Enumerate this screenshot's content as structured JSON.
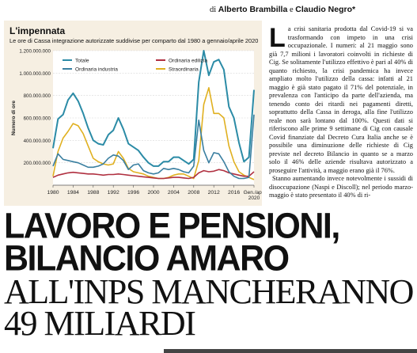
{
  "byline": {
    "prefix": "di ",
    "author1": "Alberto Brambilla",
    "and": " e ",
    "author2": "Claudio Negro*"
  },
  "chart_data": {
    "type": "line",
    "title": "L'impennata",
    "subtitle": "Le ore di Cassa integrazione autorizzate suddivise per comparto dal 1980 a gennaio/aprile 2020",
    "ylabel": "Numero di ore",
    "ylim": [
      0,
      1200000000
    ],
    "yticks": [
      "200.000.000",
      "400.000.000",
      "600.000.000",
      "800.000.000",
      "1.000.000.000",
      "1.200.000.000"
    ],
    "xticks": [
      "1980",
      "1984",
      "1988",
      "1992",
      "1996",
      "2000",
      "2004",
      "2008",
      "2012",
      "2016",
      "Gen./apr. 2020"
    ],
    "x": [
      1980,
      1981,
      1982,
      1983,
      1984,
      1985,
      1986,
      1987,
      1988,
      1989,
      1990,
      1991,
      1992,
      1993,
      1994,
      1995,
      1996,
      1997,
      1998,
      1999,
      2000,
      2001,
      2002,
      2003,
      2004,
      2005,
      2006,
      2007,
      2008,
      2009,
      2010,
      2011,
      2012,
      2013,
      2014,
      2015,
      2016,
      2017,
      2018,
      2019,
      2020
    ],
    "series": [
      {
        "name": "Totale",
        "color": "#2b8ba6",
        "values": [
          330,
          590,
          630,
          760,
          820,
          750,
          640,
          510,
          400,
          370,
          360,
          450,
          490,
          600,
          500,
          370,
          340,
          310,
          250,
          200,
          170,
          170,
          210,
          210,
          250,
          250,
          220,
          190,
          230,
          920,
          1200,
          980,
          1100,
          1120,
          1030,
          700,
          600,
          380,
          210,
          250,
          850
        ]
      },
      {
        "name": "Ordinaria edilizia",
        "color": "#b03040",
        "values": [
          70,
          90,
          100,
          110,
          115,
          110,
          105,
          100,
          100,
          95,
          90,
          95,
          95,
          100,
          95,
          90,
          85,
          80,
          75,
          70,
          65,
          60,
          60,
          65,
          70,
          70,
          65,
          60,
          70,
          110,
          130,
          120,
          125,
          140,
          130,
          110,
          100,
          90,
          80,
          80,
          120
        ]
      },
      {
        "name": "Ordinaria industria",
        "color": "#3a7fa0",
        "values": [
          170,
          280,
          230,
          220,
          210,
          200,
          180,
          160,
          160,
          170,
          190,
          240,
          270,
          260,
          220,
          140,
          180,
          190,
          130,
          110,
          100,
          110,
          150,
          140,
          150,
          140,
          120,
          110,
          170,
          580,
          310,
          200,
          290,
          280,
          210,
          120,
          80,
          60,
          60,
          70,
          630
        ]
      },
      {
        "name": "Straordinaria",
        "color": "#e0b020",
        "values": [
          80,
          300,
          420,
          480,
          550,
          530,
          460,
          350,
          240,
          210,
          190,
          180,
          190,
          300,
          240,
          150,
          120,
          110,
          100,
          80,
          70,
          60,
          60,
          70,
          90,
          100,
          100,
          80,
          60,
          220,
          720,
          870,
          640,
          640,
          600,
          350,
          210,
          120,
          90,
          70,
          50
        ]
      }
    ],
    "legend": "top-left"
  },
  "article": {
    "dropcap": "L",
    "paragraph1": "a crisi sanitaria prodotta dal Covid-19 si va trasformando con impeto in una crisi occupazionale. I numeri: al 21 maggio sono già 7,7 milioni i lavoratori coinvolti in richieste di Cig. Se solitamente l'utilizzo effettivo è pari al 40% di quanto richiesto, la crisi pandemica ha invece ampliato molto l'utilizzo della cassa: infatti al 21 maggio è già stato pagato il 71% del potenziale, in prevalenza con l'anticipo da parte dell'azienda, ma tenendo conto dei ritardi nei pagamenti diretti, soprattutto della Cassa in deroga, alla fine l'utilizzo reale non sarà lontano dal 100%. Questi dati si riferiscono alle prime 9 settimane di Cig con causale Covid finanziate dal Decreto Cura Italia anche se è possibile una diminuzione delle richieste di Cig previste nel decreto Bilancio in quanto se a marzo solo il 46% delle aziende risultava autorizzato a proseguire l'attività, a maggio erano già il 76%.",
    "paragraph2": "Stanno aumentando invece notevolmente i sussidi di disoccupazione (Naspi e Discoll); nel periodo marzo-maggio è stato presentato il 40% di ri-"
  },
  "headline": {
    "line1": "LAVORO E PENSIONI,",
    "line2": "BILANCIO AMARO",
    "line3": "ALL'INPS MANCHERANNO",
    "line4": "49 MILIARDI"
  }
}
